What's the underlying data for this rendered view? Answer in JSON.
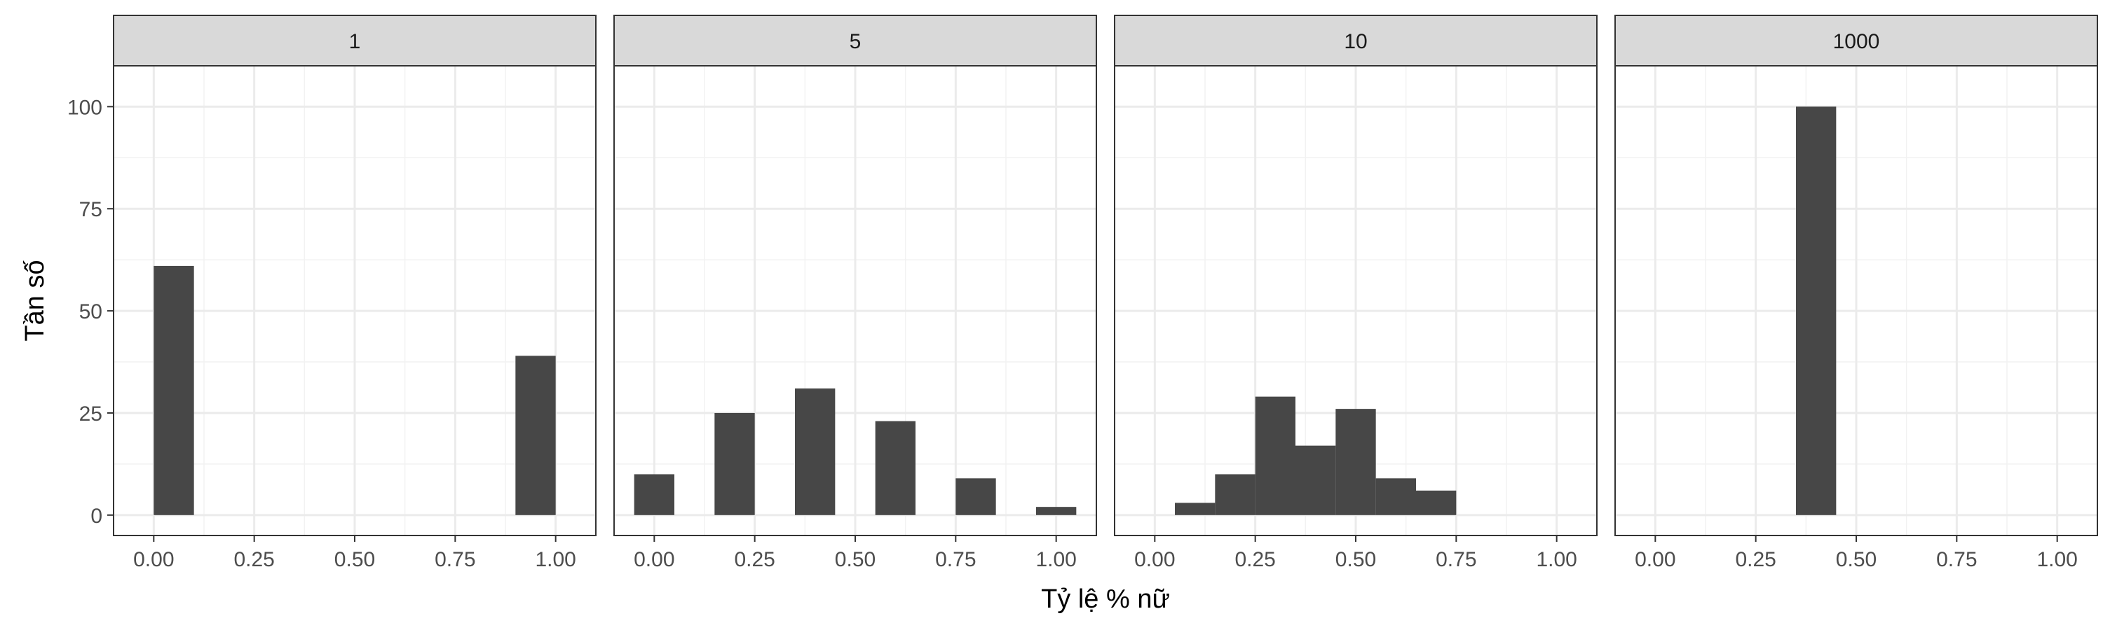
{
  "chart_data": {
    "type": "bar",
    "layout": "facet-wrap-1-row",
    "xlabel": "Tỷ lệ % nữ",
    "ylabel": "Tần số",
    "xlim": [
      -0.1,
      1.1
    ],
    "ylim": [
      -5,
      110
    ],
    "x_ticks": [
      0,
      0.25,
      0.5,
      0.75,
      1
    ],
    "x_tick_labels": [
      "0.00",
      "0.25",
      "0.50",
      "0.75",
      "1.00"
    ],
    "y_ticks": [
      0,
      25,
      50,
      75,
      100
    ],
    "y_tick_labels": [
      "0",
      "25",
      "50",
      "75",
      "100"
    ],
    "grid": true,
    "bar_color": "#474747",
    "facets": [
      {
        "label": "1",
        "bins": [
          {
            "x0": 0.0,
            "x1": 0.1,
            "value": 61
          },
          {
            "x0": 0.9,
            "x1": 1.0,
            "value": 39
          }
        ]
      },
      {
        "label": "5",
        "bins": [
          {
            "x0": -0.05,
            "x1": 0.05,
            "value": 10
          },
          {
            "x0": 0.15,
            "x1": 0.25,
            "value": 25
          },
          {
            "x0": 0.35,
            "x1": 0.45,
            "value": 31
          },
          {
            "x0": 0.55,
            "x1": 0.65,
            "value": 23
          },
          {
            "x0": 0.75,
            "x1": 0.85,
            "value": 9
          },
          {
            "x0": 0.95,
            "x1": 1.05,
            "value": 2
          }
        ]
      },
      {
        "label": "10",
        "bins": [
          {
            "x0": 0.05,
            "x1": 0.15,
            "value": 3
          },
          {
            "x0": 0.15,
            "x1": 0.25,
            "value": 10
          },
          {
            "x0": 0.25,
            "x1": 0.35,
            "value": 29
          },
          {
            "x0": 0.35,
            "x1": 0.45,
            "value": 17
          },
          {
            "x0": 0.45,
            "x1": 0.55,
            "value": 26
          },
          {
            "x0": 0.55,
            "x1": 0.65,
            "value": 9
          },
          {
            "x0": 0.65,
            "x1": 0.75,
            "value": 6
          }
        ]
      },
      {
        "label": "1000",
        "bins": [
          {
            "x0": 0.35,
            "x1": 0.45,
            "value": 100
          }
        ]
      }
    ]
  }
}
